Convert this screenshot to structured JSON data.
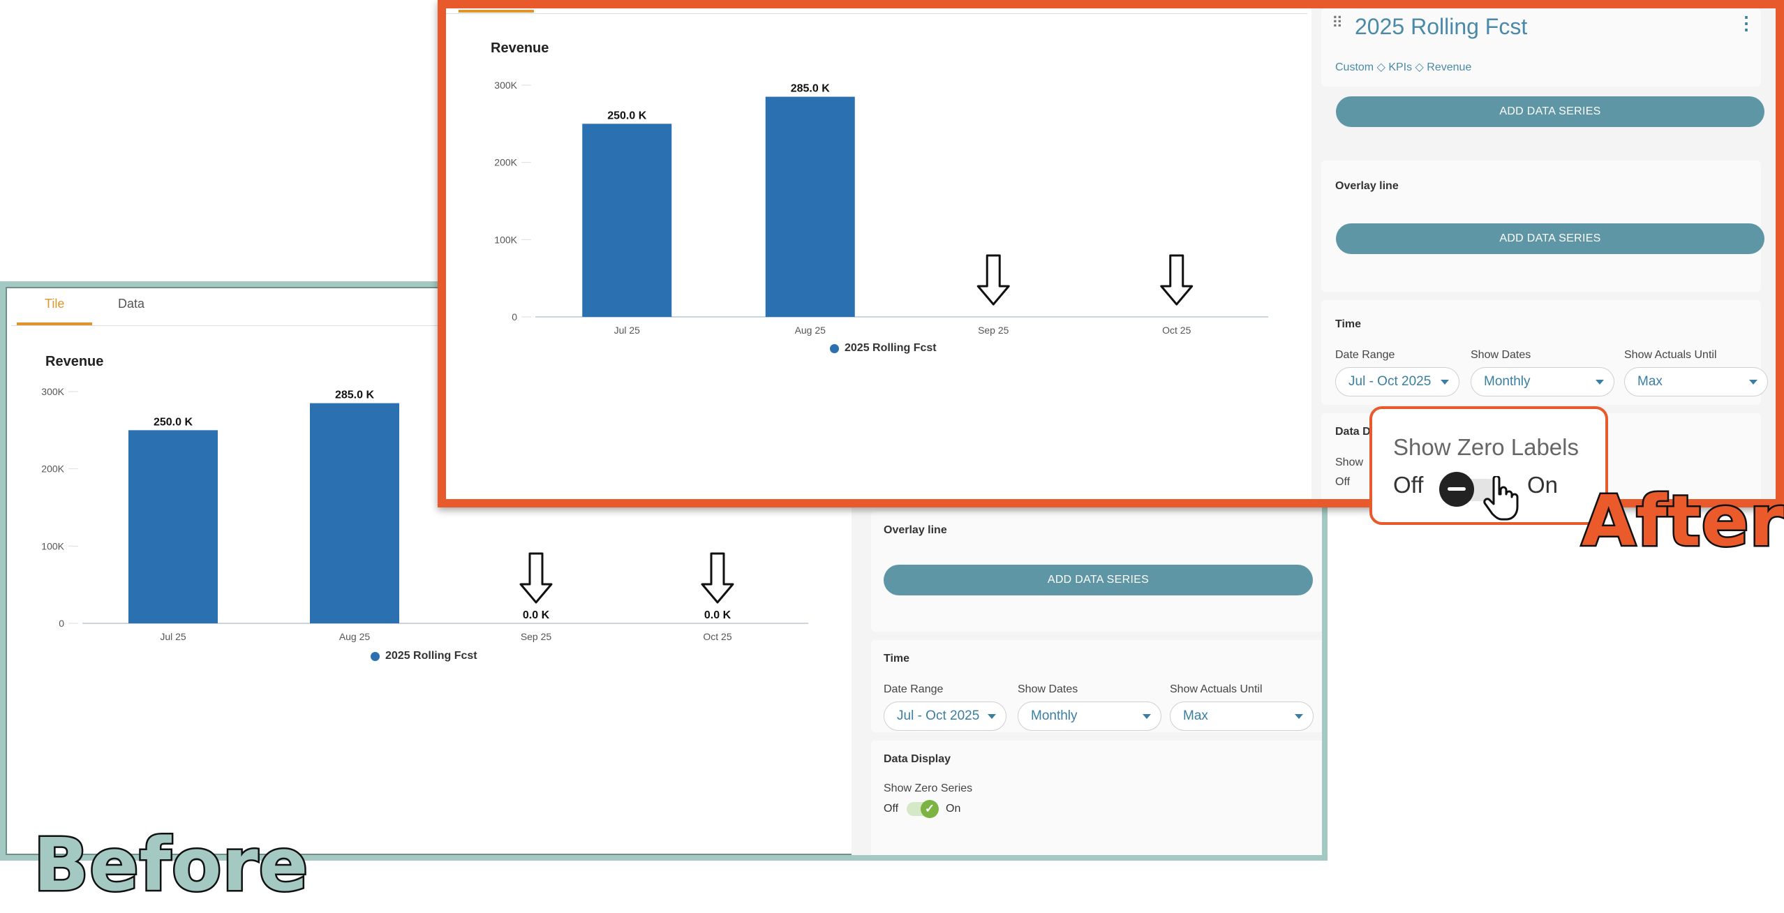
{
  "before": {
    "tabs": [
      {
        "label": "Tile"
      },
      {
        "label": "Data"
      }
    ],
    "chart_title": "Revenue",
    "legend": "2025 Rolling Fcst",
    "overlay_title": "Overlay line",
    "add_series_label": "ADD DATA SERIES",
    "time_title": "Time",
    "date_range_label": "Date Range",
    "date_range_value": "Jul - Oct 2025",
    "show_dates_label": "Show Dates",
    "show_dates_value": "Monthly",
    "actuals_label": "Show Actuals Until",
    "actuals_value": "Max",
    "data_display_title": "Data Display",
    "zero_series_label": "Show Zero Series",
    "off": "Off",
    "on": "On",
    "badge": "Before"
  },
  "after": {
    "tile_title": "2025 Rolling Fcst",
    "breadcrumb": "Custom ◇ KPIs ◇ Revenue",
    "add_series_label": "ADD DATA SERIES",
    "overlay_title": "Overlay line",
    "time_title": "Time",
    "date_range_label": "Date Range",
    "date_range_value": "Jul - Oct 2025",
    "show_dates_label": "Show Dates",
    "show_dates_value": "Monthly",
    "actuals_label": "Show Actuals Until",
    "actuals_value": "Max",
    "data_display_partial": "Data D",
    "show_partial": "Show",
    "off": "Off",
    "chart_title": "Revenue",
    "legend": "2025 Rolling Fcst",
    "badge": "After"
  },
  "callout": {
    "title": "Show Zero Labels",
    "off": "Off",
    "on": "On"
  },
  "chart_data": [
    {
      "type": "bar",
      "title": "Revenue",
      "categories": [
        "Jul 25",
        "Aug 25",
        "Sep 25",
        "Oct 25"
      ],
      "series": [
        {
          "name": "2025 Rolling Fcst",
          "values": [
            250000,
            285000,
            0,
            0
          ]
        }
      ],
      "data_labels": [
        "250.0 K",
        "285.0 K",
        "0.0 K",
        "0.0 K"
      ],
      "yticks": [
        "0",
        "100K",
        "200K",
        "300K"
      ],
      "ylim": [
        0,
        300000
      ],
      "legend": "bottom-center",
      "annotations": [
        "down-arrow over Sep 25",
        "down-arrow over Oct 25"
      ],
      "color": "#2b70b0"
    },
    {
      "type": "bar",
      "title": "Revenue",
      "categories": [
        "Jul 25",
        "Aug 25",
        "Sep 25",
        "Oct 25"
      ],
      "series": [
        {
          "name": "2025 Rolling Fcst",
          "values": [
            250000,
            285000,
            0,
            0
          ]
        }
      ],
      "data_labels": [
        "250.0 K",
        "285.0 K",
        "",
        ""
      ],
      "yticks": [
        "0",
        "100K",
        "200K",
        "300K"
      ],
      "ylim": [
        0,
        300000
      ],
      "legend": "bottom-center",
      "annotations": [
        "down-arrow over Sep 25",
        "down-arrow over Oct 25"
      ],
      "color": "#2b70b0"
    }
  ]
}
